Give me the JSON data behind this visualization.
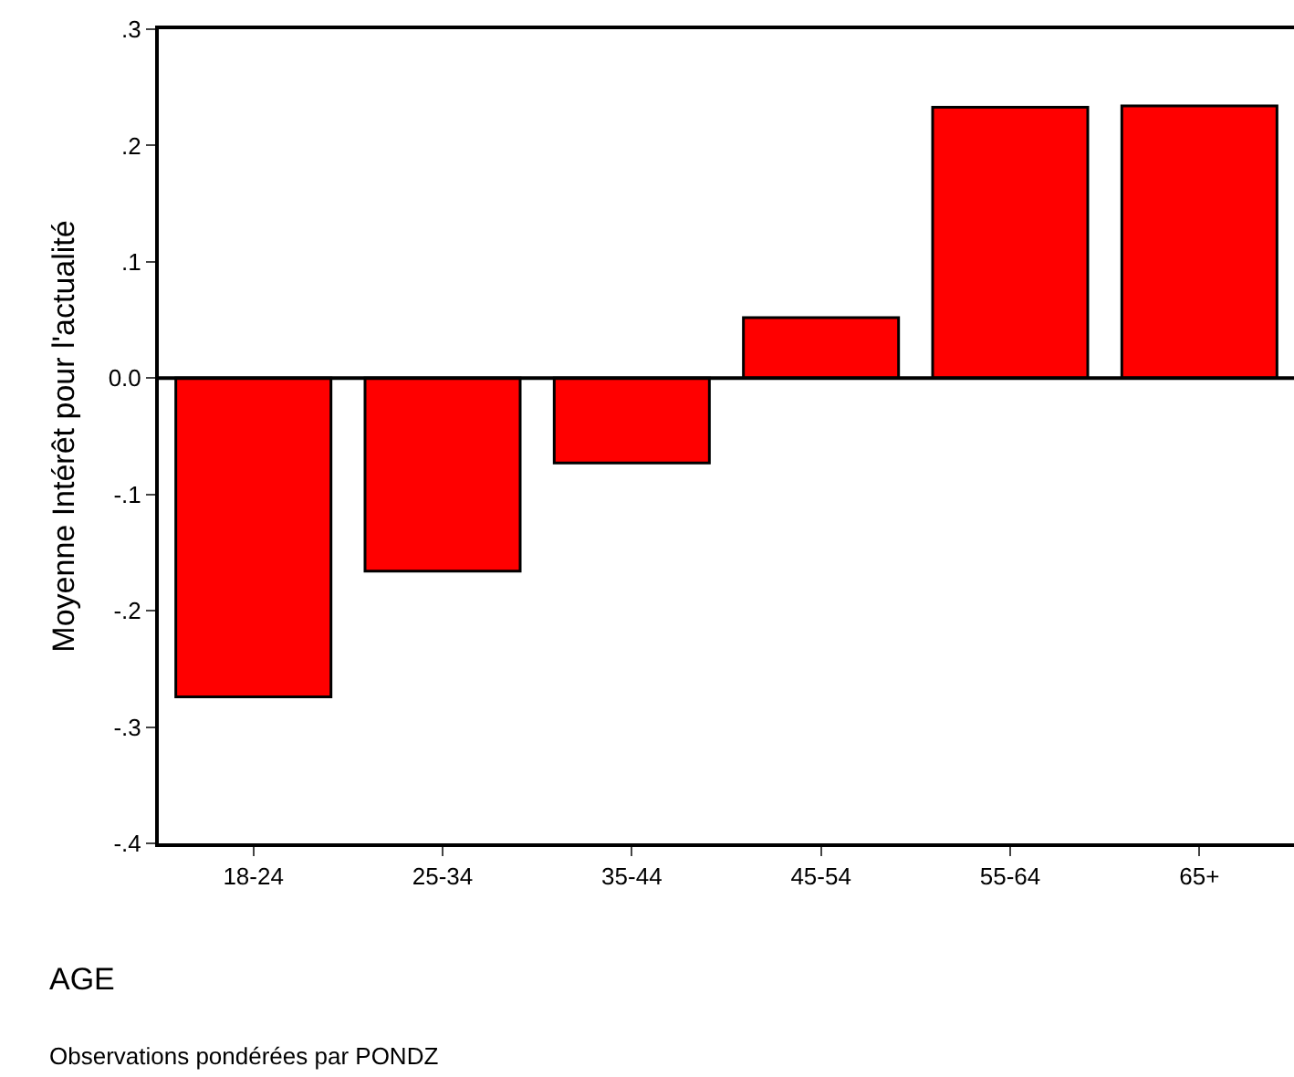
{
  "chart_data": {
    "type": "bar",
    "categories": [
      "18-24",
      "25-34",
      "35-44",
      "45-54",
      "55-64",
      "65+"
    ],
    "values": [
      -0.274,
      -0.166,
      -0.073,
      0.052,
      0.233,
      0.234
    ],
    "color": "#ff0000",
    "ylabel": "Moyenne Intérêt pour l'actualité",
    "xlabel": "AGE",
    "annotations": [
      "Observations pondérées par PONDZ"
    ],
    "ylim": [
      -0.4,
      0.3
    ],
    "yticks": [
      {
        "value": -0.4,
        "label": "-.4"
      },
      {
        "value": -0.3,
        "label": "-.3"
      },
      {
        "value": -0.2,
        "label": "-.2"
      },
      {
        "value": -0.1,
        "label": "-.1"
      },
      {
        "value": 0,
        "label": "0.0"
      },
      {
        "value": 0.1,
        "label": ".1"
      },
      {
        "value": 0.2,
        "label": ".2"
      },
      {
        "value": 0.3,
        "label": ".3"
      }
    ],
    "ref_lines": [
      {
        "axis": "y",
        "value": 0,
        "color": "#000000"
      }
    ],
    "grid": false
  }
}
